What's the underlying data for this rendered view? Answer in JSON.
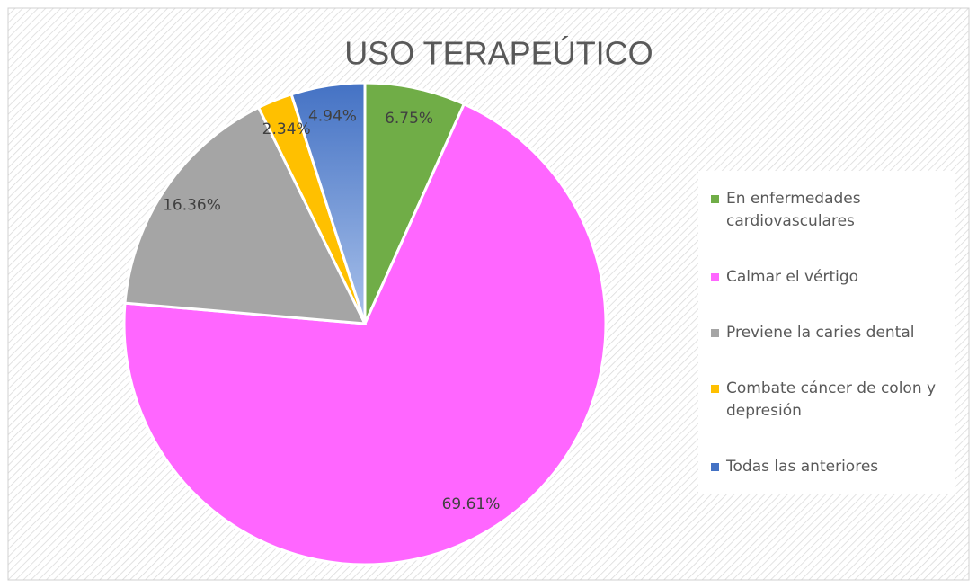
{
  "chart_data": {
    "type": "pie",
    "title": "USO TERAPEÚTICO",
    "categories": [
      "En enfermedades cardiovasculares",
      "Calmar el vértigo",
      "Previene la caries dental",
      "Combate cáncer de colon y depresión",
      "Todas las anteriores"
    ],
    "values": [
      6.75,
      69.61,
      16.36,
      2.34,
      4.94
    ],
    "value_labels": [
      "6.75%",
      "69.61%",
      "16.36%",
      "2.34%",
      "4.94%"
    ],
    "colors": [
      "#70ad47",
      "#ff66ff",
      "#a5a5a5",
      "#ffc000",
      "#4472c4"
    ],
    "legend": "right"
  }
}
